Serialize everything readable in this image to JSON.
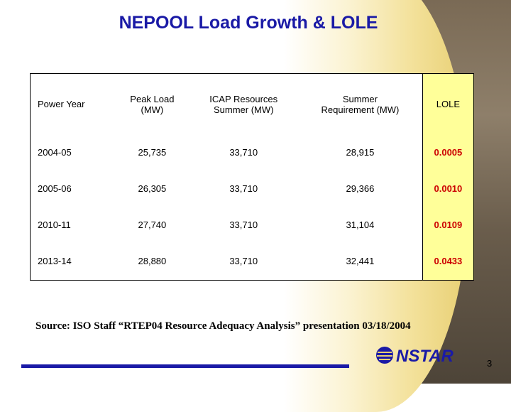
{
  "header": {
    "title": "NEPOOL Load Growth & LOLE"
  },
  "table": {
    "columns": [
      "Power Year",
      "Peak Load\n(MW)",
      "ICAP Resources\nSummer (MW)",
      "Summer\nRequirement (MW)",
      "LOLE"
    ],
    "rows": [
      [
        "2004-05",
        "25,735",
        "33,710",
        "28,915",
        "0.0005"
      ],
      [
        "2005-06",
        "26,305",
        "33,710",
        "29,366",
        "0.0010"
      ],
      [
        "2010-11",
        "27,740",
        "33,710",
        "31,104",
        "0.0109"
      ],
      [
        "2013-14",
        "28,880",
        "33,710",
        "32,441",
        "0.0433"
      ]
    ]
  },
  "source": "Source: ISO Staff “RTEP04 Resource Adequacy Analysis” presentation 03/18/2004",
  "footer": {
    "logo": "NSTAR",
    "page_number": "3"
  }
}
